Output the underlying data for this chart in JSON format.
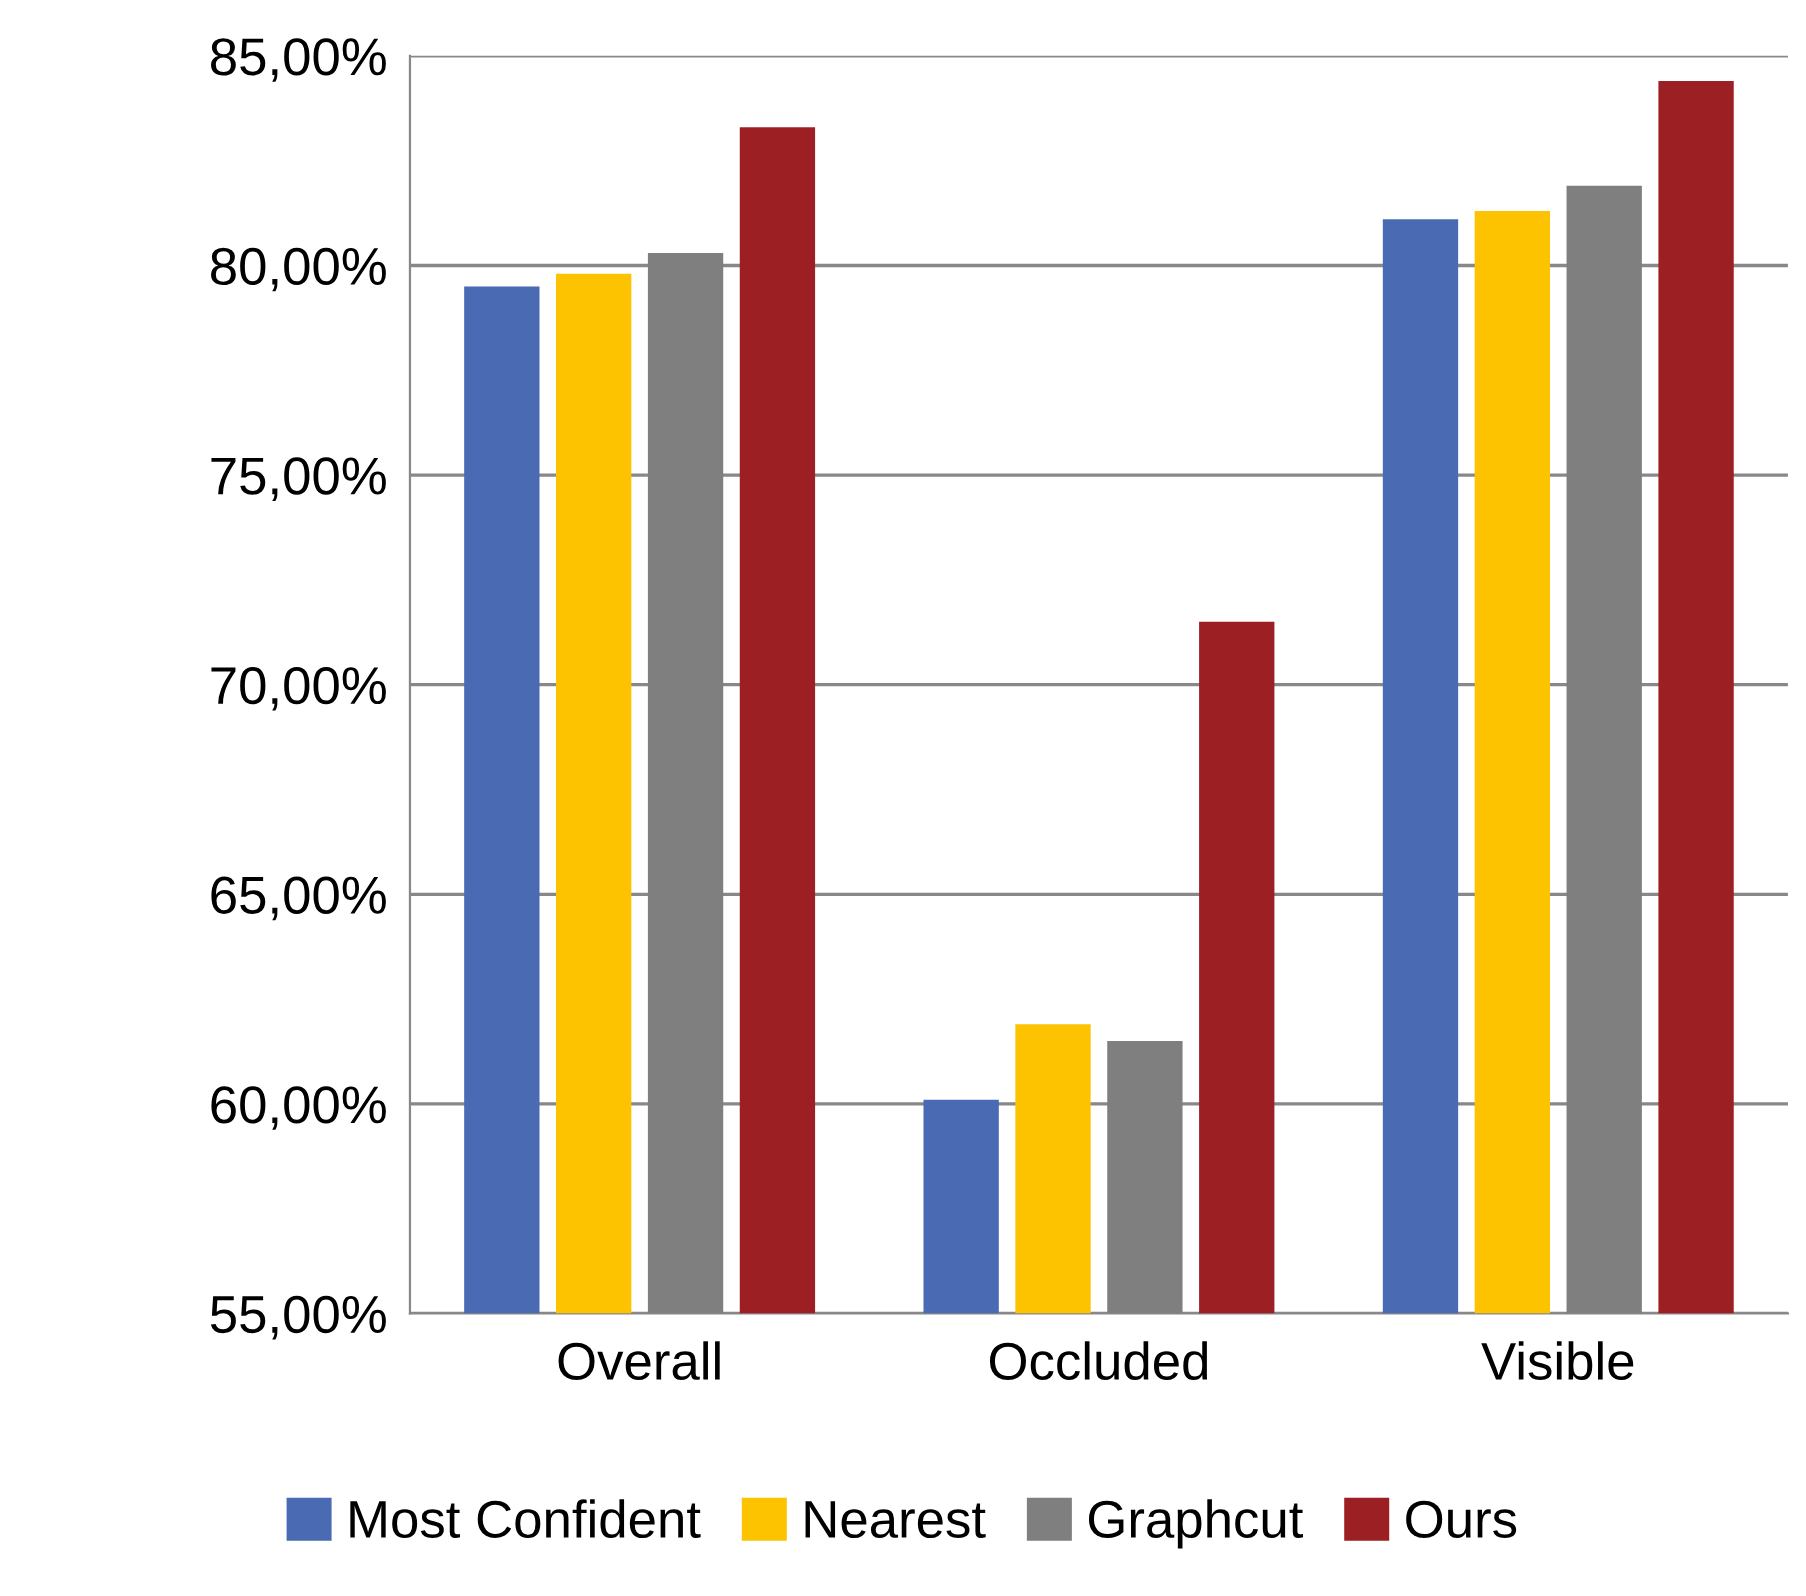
{
  "chart_data": {
    "type": "bar",
    "categories": [
      "Overall",
      "Occluded",
      "Visible"
    ],
    "series": [
      {
        "name": "Most Confident",
        "color": "#4a6bb3",
        "values": [
          79.5,
          60.1,
          81.1
        ]
      },
      {
        "name": "Nearest",
        "color": "#fdc300",
        "values": [
          79.8,
          61.9,
          81.3
        ]
      },
      {
        "name": "Graphcut",
        "color": "#7f7f7f",
        "values": [
          80.3,
          61.5,
          81.9
        ]
      },
      {
        "name": "Ours",
        "color": "#9c1f24",
        "values": [
          83.3,
          71.5,
          84.4
        ]
      }
    ],
    "ylim": [
      55,
      85
    ],
    "yticks": [
      {
        "value": 55,
        "label": "55,00%"
      },
      {
        "value": 60,
        "label": "60,00%"
      },
      {
        "value": 65,
        "label": "65,00%"
      },
      {
        "value": 70,
        "label": "70,00%"
      },
      {
        "value": 75,
        "label": "75,00%"
      },
      {
        "value": 80,
        "label": "80,00%"
      },
      {
        "value": 85,
        "label": "85,00%"
      }
    ],
    "grid": "y",
    "legend": "bottom"
  }
}
